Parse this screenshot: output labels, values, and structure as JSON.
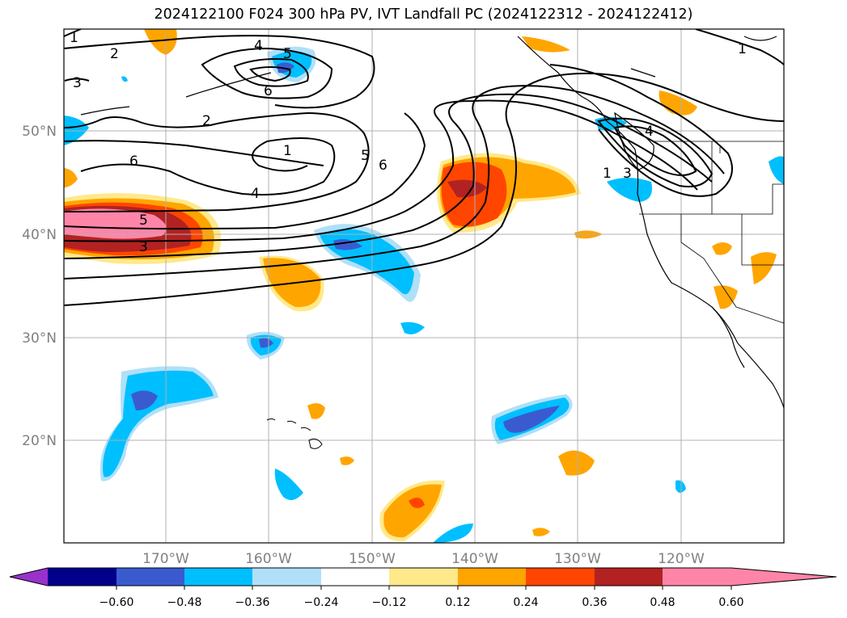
{
  "title": "2024122100 F024 300 hPa PV, IVT Landfall PC (2024122312 - 2024122412)",
  "axes": {
    "lon_ticks": [
      "170°W",
      "160°W",
      "150°W",
      "140°W",
      "130°W",
      "120°W"
    ],
    "lat_ticks": [
      "50°N",
      "40°N",
      "30°N",
      "20°N"
    ]
  },
  "colorbar": {
    "labels": [
      "-0.60",
      "-0.48",
      "-0.36",
      "-0.24",
      "-0.12",
      "0.12",
      "0.24",
      "0.36",
      "0.48",
      "0.60"
    ],
    "colors": [
      "#9932cc",
      "#00008b",
      "#3a5bd0",
      "#00bfff",
      "#b0e0f8",
      "#ffffff",
      "#ffe98a",
      "#ffa500",
      "#ff4500",
      "#b22222",
      "#ff85a8"
    ]
  },
  "contour_labels": [
    "1",
    "2",
    "4",
    "5",
    "3",
    "6",
    "2",
    "1",
    "6",
    "4",
    "5",
    "3",
    "5",
    "6",
    "1",
    "3",
    "4",
    "1"
  ],
  "minus_sign": "−"
}
